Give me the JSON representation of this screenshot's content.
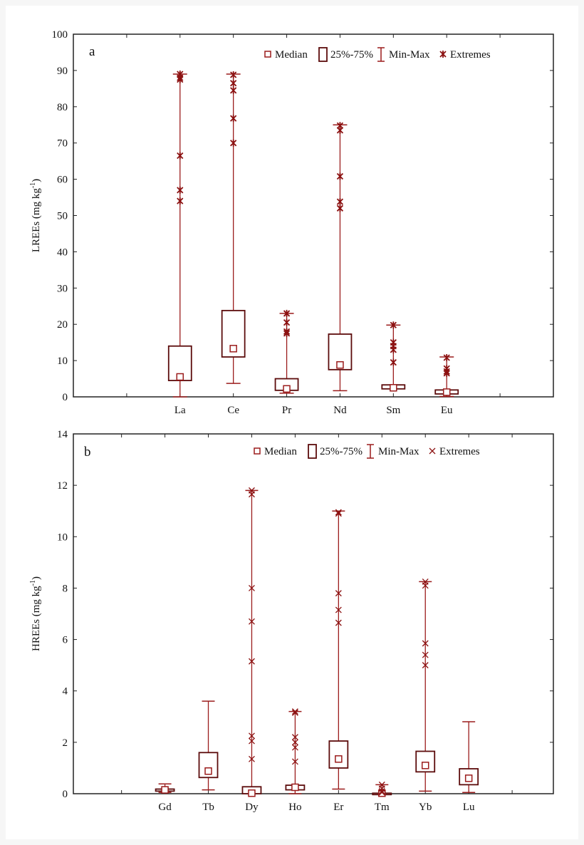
{
  "colors": {
    "whisker": "#9b1c1c",
    "box": "#5c0c0c",
    "median": "#9b1c1c",
    "extreme": "#8b1010"
  },
  "chart_data": [
    {
      "type": "boxplot",
      "panel_label": "a",
      "ylabel": "LREEs (mg kg",
      "ylabel_sup": "-1",
      "ylabel_end": ")",
      "ylim": [
        0,
        100
      ],
      "yticks": [
        "0",
        "10",
        "20",
        "30",
        "40",
        "50",
        "60",
        "70",
        "80",
        "90",
        "100"
      ],
      "grid": false,
      "legend_position": "top-right",
      "legend": {
        "median": "Median",
        "box": "25%-75%",
        "range": "Min-Max",
        "extremes": "Extremes",
        "extreme_marker": "asterisk"
      },
      "categories": [
        "La",
        "Ce",
        "Pr",
        "Nd",
        "Sm",
        "Eu"
      ],
      "series": [
        {
          "min": 0,
          "q1": 4.5,
          "median": 5.5,
          "q3": 14,
          "max": 89,
          "extremes": [
            89,
            88,
            87.5,
            66.5,
            57,
            54
          ]
        },
        {
          "min": 3.7,
          "q1": 11,
          "median": 13.3,
          "q3": 23.8,
          "max": 89,
          "extremes": [
            88.8,
            86.5,
            84.5,
            76.8,
            70
          ]
        },
        {
          "min": 1,
          "q1": 1.8,
          "median": 2.2,
          "q3": 5,
          "max": 23,
          "extremes": [
            23,
            20.5,
            18,
            17.5
          ]
        },
        {
          "min": 1.7,
          "q1": 7.5,
          "median": 8.8,
          "q3": 17.3,
          "max": 75,
          "extremes": [
            74.8,
            73.5,
            60.8,
            53.8,
            52
          ]
        },
        {
          "min": 2.2,
          "q1": 2.2,
          "median": 2.5,
          "q3": 3.3,
          "max": 19.8,
          "extremes": [
            19.8,
            15,
            14,
            13,
            9.5
          ]
        },
        {
          "min": 0.1,
          "q1": 0.8,
          "median": 1.3,
          "q3": 1.9,
          "max": 11,
          "extremes": [
            10.8,
            7.8,
            7,
            6.5
          ]
        }
      ]
    },
    {
      "type": "boxplot",
      "panel_label": "b",
      "ylabel": "HREEs (mg kg",
      "ylabel_sup": "-1",
      "ylabel_end": ")",
      "ylim": [
        0,
        14
      ],
      "yticks": [
        "0",
        "2",
        "4",
        "6",
        "8",
        "10",
        "12",
        "14"
      ],
      "grid": false,
      "legend_position": "top-right",
      "legend": {
        "median": "Median",
        "box": "25%-75%",
        "range": "Min-Max",
        "extremes": "Extremes",
        "extreme_marker": "x"
      },
      "categories": [
        "Gd",
        "Tb",
        "Dy",
        "Ho",
        "Er",
        "Tm",
        "Yb",
        "Lu"
      ],
      "series": [
        {
          "min": 0.05,
          "q1": 0.1,
          "median": 0.15,
          "q3": 0.18,
          "max": 0.38,
          "extremes": []
        },
        {
          "min": 0.15,
          "q1": 0.63,
          "median": 0.88,
          "q3": 1.6,
          "max": 3.6,
          "extremes": []
        },
        {
          "min": 0,
          "q1": 0,
          "median": 0.02,
          "q3": 0.27,
          "max": 11.8,
          "extremes": [
            11.8,
            11.65,
            8.0,
            6.7,
            5.15,
            2.25,
            2.05,
            1.35
          ]
        },
        {
          "min": 0,
          "q1": 0.15,
          "median": 0.25,
          "q3": 0.33,
          "max": 3.2,
          "extremes": [
            3.2,
            3.15,
            2.2,
            2.0,
            1.8,
            1.25
          ]
        },
        {
          "min": 0.18,
          "q1": 1.0,
          "median": 1.35,
          "q3": 2.05,
          "max": 11,
          "extremes": [
            10.95,
            10.9,
            7.8,
            7.15,
            6.65
          ]
        },
        {
          "min": 0,
          "q1": 0,
          "median": 0.02,
          "q3": 0.02,
          "max": 0.35,
          "extremes": [
            0.35,
            0.2,
            0.1,
            0.05
          ]
        },
        {
          "min": 0.1,
          "q1": 0.85,
          "median": 1.1,
          "q3": 1.65,
          "max": 8.25,
          "extremes": [
            8.25,
            8.1,
            5.85,
            5.4,
            5.0
          ]
        },
        {
          "min": 0.05,
          "q1": 0.35,
          "median": 0.6,
          "q3": 0.97,
          "max": 2.8,
          "extremes": []
        }
      ]
    }
  ]
}
